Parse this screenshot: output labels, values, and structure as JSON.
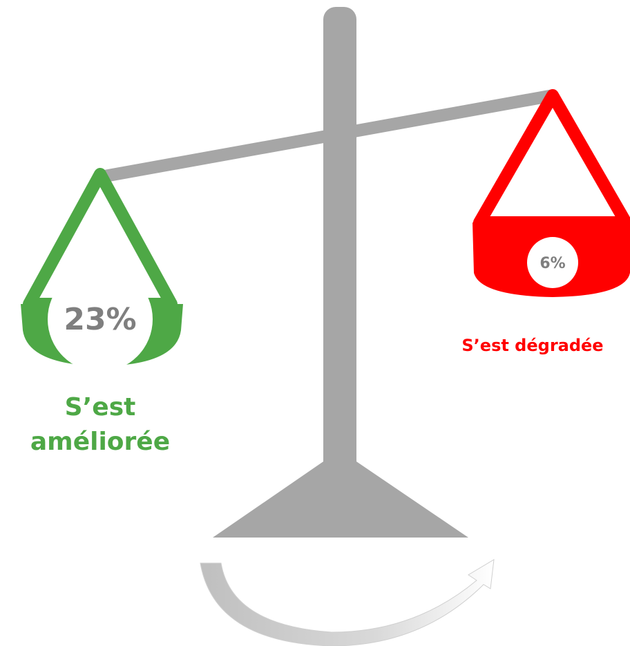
{
  "left": {
    "value": "23%",
    "label": "S’est améliorée"
  },
  "right": {
    "value": "6%",
    "label": "S’est dégradée"
  }
}
